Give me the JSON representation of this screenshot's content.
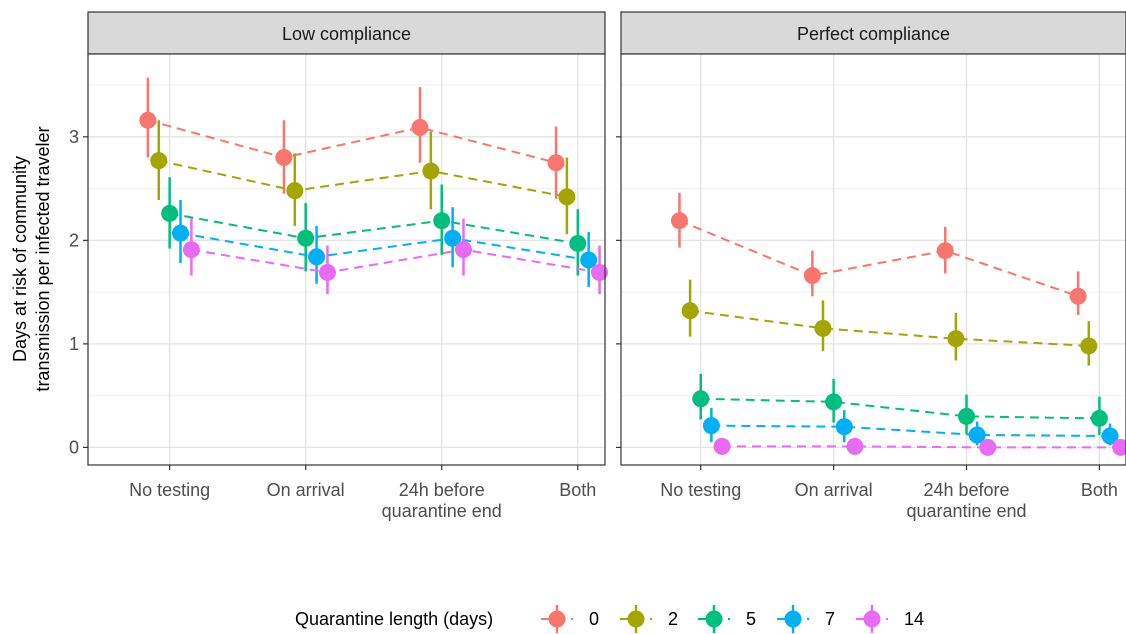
{
  "chart_data": {
    "type": "scatter",
    "ylabel_lines": [
      "Days at risk of community",
      "transmission per infected traveler"
    ],
    "categories": [
      [
        "No testing"
      ],
      [
        "On arrival"
      ],
      [
        "24h before",
        "quarantine end"
      ],
      [
        "Both"
      ]
    ],
    "yticks": [
      0,
      1,
      2,
      3
    ],
    "ylim": [
      -0.17,
      3.8
    ],
    "grid": true,
    "legend": {
      "title": "Quarantine length (days)",
      "position": "bottom"
    },
    "panels": [
      {
        "title": "Low compliance",
        "series": [
          {
            "name": "0",
            "color": "#F8766D",
            "values": [
              3.16,
              2.8,
              3.09,
              2.75
            ],
            "lower": [
              2.8,
              2.45,
              2.75,
              2.4
            ],
            "upper": [
              3.57,
              3.16,
              3.48,
              3.1
            ]
          },
          {
            "name": "2",
            "color": "#A3A500",
            "values": [
              2.77,
              2.48,
              2.67,
              2.42
            ],
            "lower": [
              2.39,
              2.14,
              2.3,
              2.06
            ],
            "upper": [
              3.16,
              2.84,
              3.05,
              2.8
            ]
          },
          {
            "name": "5",
            "color": "#00BF7D",
            "values": [
              2.26,
              2.02,
              2.19,
              1.97
            ],
            "lower": [
              1.92,
              1.7,
              1.86,
              1.66
            ],
            "upper": [
              2.61,
              2.36,
              2.54,
              2.3
            ]
          },
          {
            "name": "7",
            "color": "#00B0F6",
            "values": [
              2.07,
              1.84,
              2.02,
              1.81
            ],
            "lower": [
              1.78,
              1.58,
              1.74,
              1.55
            ],
            "upper": [
              2.39,
              2.14,
              2.32,
              2.08
            ]
          },
          {
            "name": "14",
            "color": "#E76BF3",
            "values": [
              1.91,
              1.69,
              1.91,
              1.69
            ],
            "lower": [
              1.66,
              1.48,
              1.66,
              1.48
            ],
            "upper": [
              2.21,
              1.95,
              2.21,
              1.95
            ]
          }
        ]
      },
      {
        "title": "Perfect compliance",
        "series": [
          {
            "name": "0",
            "color": "#F8766D",
            "values": [
              2.19,
              1.66,
              1.9,
              1.46
            ],
            "lower": [
              1.93,
              1.46,
              1.68,
              1.28
            ],
            "upper": [
              2.46,
              1.9,
              2.13,
              1.7
            ]
          },
          {
            "name": "2",
            "color": "#A3A500",
            "values": [
              1.32,
              1.15,
              1.05,
              0.98
            ],
            "lower": [
              1.07,
              0.93,
              0.84,
              0.79
            ],
            "upper": [
              1.62,
              1.42,
              1.3,
              1.22
            ]
          },
          {
            "name": "5",
            "color": "#00BF7D",
            "values": [
              0.47,
              0.44,
              0.3,
              0.28
            ],
            "lower": [
              0.27,
              0.24,
              0.13,
              0.12
            ],
            "upper": [
              0.71,
              0.66,
              0.51,
              0.49
            ]
          },
          {
            "name": "7",
            "color": "#00B0F6",
            "values": [
              0.21,
              0.2,
              0.12,
              0.11
            ],
            "lower": [
              0.05,
              0.05,
              0.02,
              0.02
            ],
            "upper": [
              0.38,
              0.36,
              0.25,
              0.23
            ]
          },
          {
            "name": "14",
            "color": "#E76BF3",
            "values": [
              0.01,
              0.01,
              0.0,
              0.0
            ],
            "lower": [
              0.0,
              0.0,
              0.0,
              0.0
            ],
            "upper": [
              0.02,
              0.02,
              0.01,
              0.01
            ]
          }
        ]
      }
    ]
  }
}
